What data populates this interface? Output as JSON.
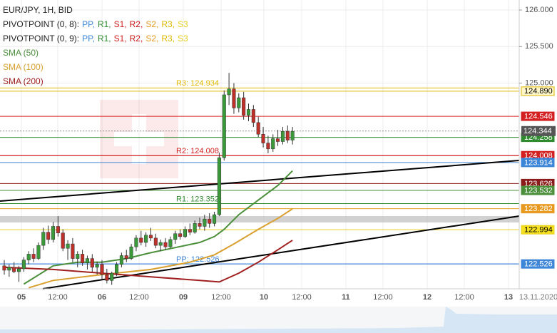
{
  "chart_data": {
    "type": "candlestick",
    "title": "EUR/JPY, 1H, BID",
    "legend": [
      {
        "label": "PIVOTPOINT (0, 8):",
        "items": [
          {
            "text": "PP,",
            "color": "#3d86d8"
          },
          {
            "text": "R1,",
            "color": "#2e8b2e"
          },
          {
            "text": "S1,",
            "color": "#d42020"
          },
          {
            "text": "R2,",
            "color": "#c81818"
          },
          {
            "text": "S2,",
            "color": "#e89a20"
          },
          {
            "text": "R3,",
            "color": "#e0b800"
          },
          {
            "text": "S3",
            "color": "#e8d020"
          }
        ]
      },
      {
        "label": "PIVOTPOINT (0, 9):",
        "items": [
          {
            "text": "PP,",
            "color": "#3d86d8"
          },
          {
            "text": "R1,",
            "color": "#2e8b2e"
          },
          {
            "text": "S1,",
            "color": "#d42020"
          },
          {
            "text": "R2,",
            "color": "#c81818"
          },
          {
            "text": "S2,",
            "color": "#e89a20"
          },
          {
            "text": "R3,",
            "color": "#e0b800"
          },
          {
            "text": "S3",
            "color": "#e8d020"
          }
        ]
      }
    ],
    "series": [
      {
        "name": "SMA (50)",
        "color": "#4b8f3b",
        "x": [
          4,
          10,
          15,
          20,
          25,
          30,
          35,
          40,
          43,
          45,
          48,
          52,
          56,
          59
        ],
        "values": [
          122.25,
          122.5,
          122.55,
          122.55,
          122.6,
          122.68,
          122.75,
          122.82,
          122.9,
          123.0,
          123.2,
          123.4,
          123.6,
          123.8
        ]
      },
      {
        "name": "SMA (100)",
        "color": "#d9a030",
        "x": [
          5,
          10,
          20,
          30,
          38,
          43,
          47,
          52,
          56,
          59
        ],
        "values": [
          122.2,
          122.3,
          122.38,
          122.45,
          122.55,
          122.65,
          122.8,
          123.0,
          123.15,
          123.28
        ]
      },
      {
        "name": "SMA (200)",
        "color": "#a02020",
        "x": [
          0,
          10,
          20,
          30,
          40,
          44,
          48,
          52,
          56,
          59
        ],
        "values": [
          122.48,
          122.45,
          122.4,
          122.35,
          122.3,
          122.28,
          122.4,
          122.55,
          122.72,
          122.85
        ]
      }
    ],
    "ohlc": [
      [
        122.5,
        122.58,
        122.38,
        122.44
      ],
      [
        122.44,
        122.52,
        122.35,
        122.48
      ],
      [
        122.48,
        122.55,
        122.4,
        122.42
      ],
      [
        122.42,
        122.5,
        122.28,
        122.46
      ],
      [
        122.46,
        122.62,
        122.42,
        122.58
      ],
      [
        122.58,
        122.7,
        122.52,
        122.66
      ],
      [
        122.66,
        122.74,
        122.55,
        122.6
      ],
      [
        122.6,
        122.82,
        122.58,
        122.78
      ],
      [
        122.78,
        123.02,
        122.72,
        122.96
      ],
      [
        122.96,
        123.05,
        122.8,
        122.86
      ],
      [
        122.86,
        123.1,
        122.82,
        123.04
      ],
      [
        123.04,
        123.18,
        122.9,
        122.95
      ],
      [
        122.95,
        123.0,
        122.7,
        122.74
      ],
      [
        122.74,
        122.85,
        122.58,
        122.8
      ],
      [
        122.8,
        122.88,
        122.55,
        122.6
      ],
      [
        122.6,
        122.7,
        122.48,
        122.66
      ],
      [
        122.66,
        122.72,
        122.5,
        122.54
      ],
      [
        122.54,
        122.64,
        122.45,
        122.6
      ],
      [
        122.6,
        122.66,
        122.42,
        122.48
      ],
      [
        122.48,
        122.56,
        122.38,
        122.52
      ],
      [
        122.52,
        122.58,
        122.32,
        122.38
      ],
      [
        122.38,
        122.46,
        122.26,
        122.3
      ],
      [
        122.3,
        122.42,
        122.24,
        122.4
      ],
      [
        122.4,
        122.55,
        122.36,
        122.52
      ],
      [
        122.52,
        122.68,
        122.48,
        122.64
      ],
      [
        122.64,
        122.72,
        122.55,
        122.6
      ],
      [
        122.6,
        122.8,
        122.58,
        122.76
      ],
      [
        122.76,
        122.92,
        122.7,
        122.88
      ],
      [
        122.88,
        122.98,
        122.78,
        122.82
      ],
      [
        122.82,
        122.96,
        122.76,
        122.92
      ],
      [
        122.92,
        123.02,
        122.84,
        122.88
      ],
      [
        122.88,
        122.94,
        122.74,
        122.78
      ],
      [
        122.78,
        122.86,
        122.7,
        122.82
      ],
      [
        122.82,
        122.88,
        122.72,
        122.76
      ],
      [
        122.76,
        122.9,
        122.74,
        122.86
      ],
      [
        122.86,
        122.98,
        122.8,
        122.94
      ],
      [
        122.94,
        123.0,
        122.86,
        122.9
      ],
      [
        122.9,
        123.04,
        122.88,
        123.0
      ],
      [
        123.0,
        123.08,
        122.92,
        122.96
      ],
      [
        122.96,
        123.12,
        122.94,
        123.08
      ],
      [
        123.08,
        123.16,
        123.0,
        123.04
      ],
      [
        123.04,
        123.2,
        122.98,
        123.14
      ],
      [
        123.14,
        123.22,
        123.02,
        123.08
      ],
      [
        123.08,
        123.24,
        123.04,
        123.2
      ],
      [
        123.2,
        124.05,
        123.18,
        123.98
      ],
      [
        123.98,
        124.9,
        123.94,
        124.84
      ],
      [
        124.84,
        125.14,
        124.7,
        124.92
      ],
      [
        124.92,
        125.0,
        124.58,
        124.66
      ],
      [
        124.66,
        124.86,
        124.6,
        124.8
      ],
      [
        124.8,
        124.88,
        124.5,
        124.56
      ],
      [
        124.56,
        124.72,
        124.48,
        124.64
      ],
      [
        124.64,
        124.7,
        124.4,
        124.46
      ],
      [
        124.46,
        124.54,
        124.26,
        124.3
      ],
      [
        124.3,
        124.4,
        124.12,
        124.18
      ],
      [
        124.18,
        124.28,
        124.04,
        124.1
      ],
      [
        124.1,
        124.3,
        124.06,
        124.24
      ],
      [
        124.24,
        124.36,
        124.14,
        124.2
      ],
      [
        124.2,
        124.4,
        124.16,
        124.34
      ],
      [
        124.34,
        124.42,
        124.18,
        124.22
      ],
      [
        124.22,
        124.4,
        124.16,
        124.34
      ]
    ],
    "up_color": "#3a9a3a",
    "down_color": "#c0302a",
    "ylim": [
      122.186,
      126.137
    ],
    "yticks": [
      {
        "value": 126,
        "label": "126.000"
      },
      {
        "value": 125.5,
        "label": "125.500"
      },
      {
        "value": 125,
        "label": "125.000"
      }
    ],
    "grid": true,
    "x_labels": [
      "05",
      "12:00",
      "06",
      "12:00",
      "09",
      "12:00",
      "10",
      "12:00",
      "11",
      "12:00",
      "12",
      "12:00",
      "13"
    ],
    "date_label": "13.11.2020",
    "pivot_labels": [
      {
        "label": "R3: 124.934",
        "value": 124.934,
        "color": "#e0b800"
      },
      {
        "label": "R2: 124.008",
        "value": 124.008,
        "color": "#d42020"
      },
      {
        "label": "R1: 123.352",
        "value": 123.352,
        "color": "#2e8b2e"
      },
      {
        "label": "PP: 122.526",
        "value": 122.526,
        "color": "#3d86d8"
      }
    ],
    "levels": [
      {
        "value": 124.89,
        "label": "124.890",
        "color": "#e0b800",
        "text_color": "#000000",
        "bg": "#fff7c8"
      },
      {
        "value": 124.546,
        "label": "124.546",
        "color": "#d42020",
        "text_color": "#ffffff",
        "bg": "#d42020"
      },
      {
        "value": 124.258,
        "label": "124.258",
        "color": "#2e8b2e",
        "text_color": "#ffffff",
        "bg": "#2e8b2e"
      },
      {
        "value": 124.008,
        "label": "124.008",
        "color": "#d42020",
        "text_color": "#ffffff",
        "bg": "#d42020"
      },
      {
        "value": 123.914,
        "label": "123.914",
        "color": "#3d86d8",
        "text_color": "#ffffff",
        "bg": "#3d86d8"
      },
      {
        "value": 123.626,
        "label": "123.626",
        "color": "#8b1a1a",
        "text_color": "#ffffff",
        "bg": "#8b1a1a"
      },
      {
        "value": 123.532,
        "label": "123.532",
        "color": "#4b8f3b",
        "text_color": "#ffffff",
        "bg": "#4b8f3b"
      },
      {
        "value": 123.282,
        "label": "123.282",
        "color": "#e89a20",
        "text_color": "#ffffff",
        "bg": "#e89a20"
      },
      {
        "value": 122.994,
        "label": "122.994",
        "color": "#e8d020",
        "text_color": "#000000",
        "bg": "#f5e020"
      },
      {
        "value": 122.526,
        "label": "122.526",
        "color": "#3d86d8",
        "text_color": "#ffffff",
        "bg": "#3d86d8"
      }
    ],
    "current": {
      "value": 124.344,
      "label": "124.344"
    }
  }
}
